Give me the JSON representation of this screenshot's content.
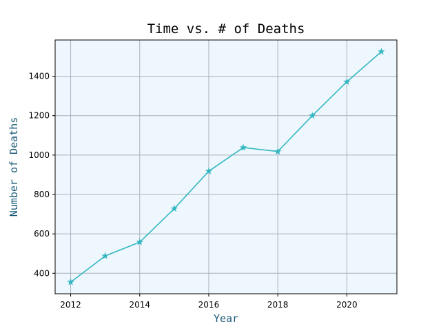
{
  "colors": {
    "background": "#eef7fd",
    "line": "#35b7c2",
    "grid": "#a9b0ba",
    "axis_label": "#1a5a78"
  },
  "chart_data": {
    "type": "line",
    "title": "Time vs. # of Deaths",
    "xlabel": "Year",
    "ylabel": "Number of Deaths",
    "x": [
      2012,
      2013,
      2014,
      2015,
      2016,
      2017,
      2018,
      2019,
      2020,
      2021
    ],
    "series": [
      {
        "values": [
          355,
          488,
          558,
          728,
          918,
          1038,
          1018,
          1200,
          1372,
          1525
        ],
        "marker": "star"
      }
    ],
    "xlim": [
      2011.55,
      2021.45
    ],
    "ylim": [
      296,
      1584
    ],
    "xticks": [
      2012,
      2014,
      2016,
      2018,
      2020
    ],
    "yticks": [
      400,
      600,
      800,
      1000,
      1200,
      1400
    ],
    "grid": true
  }
}
